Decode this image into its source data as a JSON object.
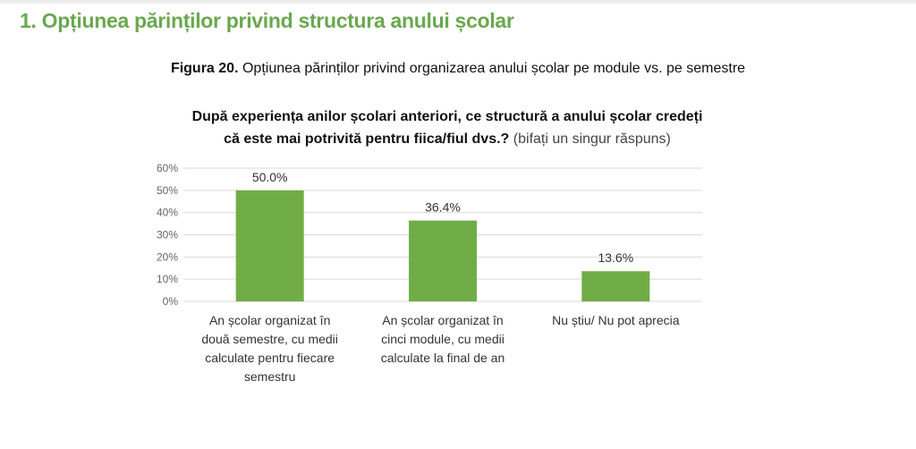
{
  "section_title": "1. Opțiunea părinților privind structura anului școlar",
  "figure": {
    "label": "Figura 20.",
    "caption": "Opțiunea părinților privind organizarea anului școlar pe module vs. pe semestre"
  },
  "chart_data": {
    "type": "bar",
    "title_line1": "După experiența anilor școlari anteriori, ce structură a anului școlar credeți",
    "title_line2": "că este mai potrivită pentru fiica/fiul dvs.?",
    "title_note": "(bifați un singur răspuns)",
    "categories": [
      [
        "An școlar organizat în",
        "două semestre, cu medii",
        "calculate pentru fiecare",
        "semestru"
      ],
      [
        "An școlar organizat în",
        "cinci module, cu medii",
        "calculate la final de an"
      ],
      [
        "Nu știu/ Nu pot aprecia"
      ]
    ],
    "values": [
      50.0,
      36.4,
      13.6
    ],
    "data_labels": [
      "50.0%",
      "36.4%",
      "13.6%"
    ],
    "yticks": [
      "0%",
      "10%",
      "20%",
      "30%",
      "40%",
      "50%",
      "60%"
    ],
    "ylim": [
      0,
      60
    ],
    "grid": true,
    "bar_color": "#70ad47",
    "xlabel": "",
    "ylabel": ""
  }
}
